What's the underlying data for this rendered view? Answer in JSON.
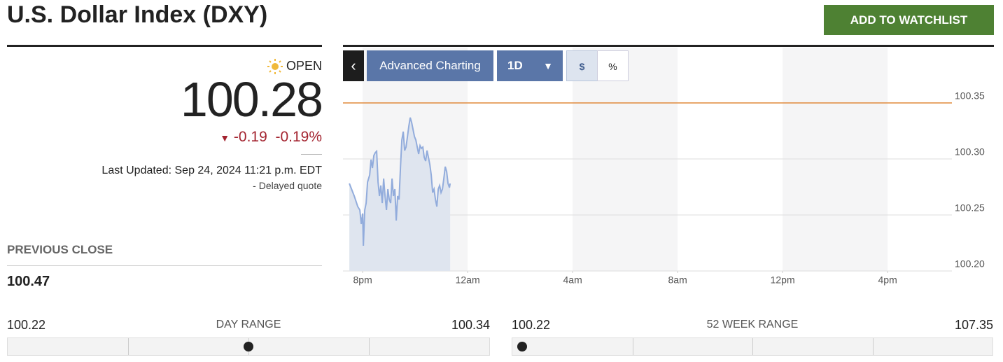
{
  "header": {
    "title": "U.S. Dollar Index (DXY)",
    "button": "ADD TO WATCHLIST"
  },
  "quote": {
    "status": "OPEN",
    "price": 100.28,
    "change": -0.19,
    "change_percent_label": "-0.19%",
    "last_updated": "Last Updated: Sep 24, 2024 11:21 p.m. EDT",
    "delay_note": "- Delayed quote"
  },
  "previous_close": {
    "label": "PREVIOUS CLOSE",
    "value": 100.47
  },
  "day_range": {
    "label": "DAY RANGE",
    "low": 100.22,
    "high": 100.34
  },
  "week52_range": {
    "label": "52 WEEK RANGE",
    "low": 100.22,
    "high": 107.35
  },
  "toolbar": {
    "collapse": "‹",
    "advanced": "Advanced Charting",
    "interval": "1D",
    "dollar": "$",
    "percent": "%"
  },
  "chart_data": {
    "type": "area",
    "x": [
      19.493,
      19.68,
      19.813,
      19.893,
      19.947,
      20.0,
      20.027,
      20.08,
      20.133,
      20.187,
      20.267,
      20.32,
      20.373,
      20.427,
      20.48,
      20.533,
      20.587,
      20.64,
      20.693,
      20.747,
      20.8,
      20.853,
      20.907,
      20.96,
      21.013,
      21.067,
      21.12,
      21.173,
      21.227,
      21.28,
      21.333,
      21.387,
      21.44,
      21.493,
      21.547,
      21.6,
      21.653,
      21.707,
      21.76,
      21.813,
      21.867,
      21.92,
      21.973,
      22.027,
      22.08,
      22.133,
      22.187,
      22.24,
      22.293,
      22.347,
      22.4,
      22.453,
      22.507,
      22.56,
      22.613,
      22.667,
      22.72,
      22.773,
      22.827,
      22.88,
      22.933,
      22.987,
      23.04,
      23.093,
      23.147,
      23.2,
      23.253,
      23.307,
      23.333
    ],
    "series": [
      {
        "color": "#92acdc",
        "fill": "#dfe5ef",
        "values": [
          100.2781,
          100.2669,
          100.2575,
          100.2544,
          100.2419,
          100.2513,
          100.2225,
          100.2544,
          100.2606,
          100.2794,
          100.2856,
          100.2994,
          100.2919,
          100.3031,
          100.3056,
          100.3069,
          100.2794,
          100.2669,
          100.2763,
          100.2606,
          100.2825,
          100.2669,
          100.2544,
          100.2731,
          100.2638,
          100.2606,
          100.2825,
          100.2669,
          100.2731,
          100.245,
          100.2669,
          100.2638,
          100.2919,
          100.3169,
          100.3244,
          100.3075,
          100.3106,
          100.32,
          100.3294,
          100.3369,
          100.3325,
          100.3263,
          100.32,
          100.3169,
          100.3106,
          100.3044,
          100.3119,
          100.3094,
          100.3106,
          100.3013,
          100.2981,
          100.3075,
          100.3013,
          100.295,
          100.2856,
          100.27,
          100.2731,
          100.2638,
          100.2575,
          100.2731,
          100.2763,
          100.27,
          100.2731,
          100.2825,
          100.2931,
          100.2888,
          100.2781,
          100.2744,
          100.2781
        ]
      }
    ],
    "reference_line": {
      "value": 100.35,
      "color": "#e08a3c"
    },
    "xlim": [
      19.25,
      42.45
    ],
    "xticks": [
      {
        "value": 20,
        "label": "8pm"
      },
      {
        "value": 24,
        "label": "12am"
      },
      {
        "value": 28,
        "label": "4am"
      },
      {
        "value": 32,
        "label": "8am"
      },
      {
        "value": 36,
        "label": "12pm"
      },
      {
        "value": 40,
        "label": "4pm"
      }
    ],
    "ylim": [
      100.2,
      100.4
    ],
    "yticks": [
      {
        "value": 100.2,
        "label": "100.20"
      },
      100.25,
      {
        "value": 100.3,
        "label": "100.30"
      },
      100.35
    ],
    "grid": true
  }
}
